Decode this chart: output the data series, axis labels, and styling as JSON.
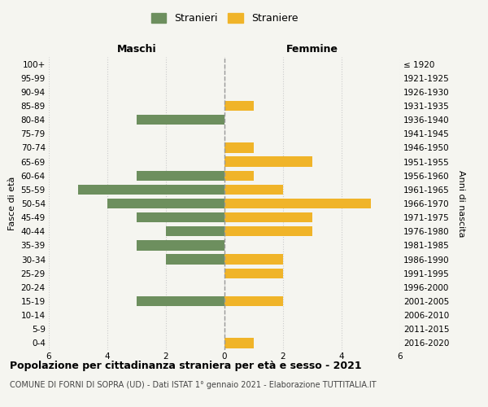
{
  "age_groups": [
    "100+",
    "95-99",
    "90-94",
    "85-89",
    "80-84",
    "75-79",
    "70-74",
    "65-69",
    "60-64",
    "55-59",
    "50-54",
    "45-49",
    "40-44",
    "35-39",
    "30-34",
    "25-29",
    "20-24",
    "15-19",
    "10-14",
    "5-9",
    "0-4"
  ],
  "birth_years": [
    "≤ 1920",
    "1921-1925",
    "1926-1930",
    "1931-1935",
    "1936-1940",
    "1941-1945",
    "1946-1950",
    "1951-1955",
    "1956-1960",
    "1961-1965",
    "1966-1970",
    "1971-1975",
    "1976-1980",
    "1981-1985",
    "1986-1990",
    "1991-1995",
    "1996-2000",
    "2001-2005",
    "2006-2010",
    "2011-2015",
    "2016-2020"
  ],
  "males": [
    0,
    0,
    0,
    0,
    3,
    0,
    0,
    0,
    3,
    5,
    4,
    3,
    2,
    3,
    2,
    0,
    0,
    3,
    0,
    0,
    0
  ],
  "females": [
    0,
    0,
    0,
    1,
    0,
    0,
    1,
    3,
    1,
    2,
    5,
    3,
    3,
    0,
    2,
    2,
    0,
    2,
    0,
    0,
    1
  ],
  "male_color": "#6d8f5e",
  "female_color": "#f0b429",
  "xlim": 6,
  "title": "Popolazione per cittadinanza straniera per età e sesso - 2021",
  "subtitle": "COMUNE DI FORNI DI SOPRA (UD) - Dati ISTAT 1° gennaio 2021 - Elaborazione TUTTITALIA.IT",
  "ylabel_left": "Fasce di età",
  "ylabel_right": "Anni di nascita",
  "label_maschi": "Maschi",
  "label_femmine": "Femmine",
  "legend_male": "Stranieri",
  "legend_female": "Straniere",
  "background_color": "#f5f5f0",
  "grid_color": "#cccccc",
  "dashed_line_color": "#999999",
  "title_fontsize": 9,
  "subtitle_fontsize": 7,
  "tick_fontsize": 7.5,
  "label_fontsize": 9
}
